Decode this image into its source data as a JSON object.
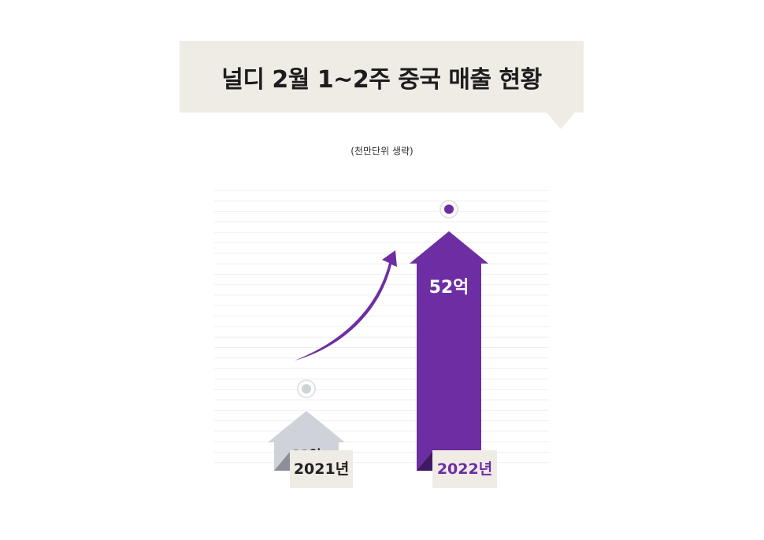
{
  "title": "널디 2월 1~2주 중국 매출 현황",
  "subtitle": "(천만단위 생략)",
  "colors": {
    "bar_2021": "#cfd2d8",
    "bar_2022": "#6d2ea3",
    "label_bg": "#efece6",
    "grid": "#efefef",
    "value_2021_text": "#222222",
    "value_2022_text": "#ffffff",
    "year_2022_text": "#6d2ea3"
  },
  "chart_data": {
    "type": "bar",
    "title": "널디 2월 1~2주 중국 매출 현황",
    "subtitle": "(천만단위 생략)",
    "categories": [
      "2021년",
      "2022년"
    ],
    "values": [
      13,
      52
    ],
    "value_labels": [
      "13억",
      "52억"
    ],
    "unit": "억",
    "grid": true,
    "ylim": [
      0,
      58
    ],
    "annotations": [
      "upward growth arrow from 2021 to 2022"
    ]
  }
}
